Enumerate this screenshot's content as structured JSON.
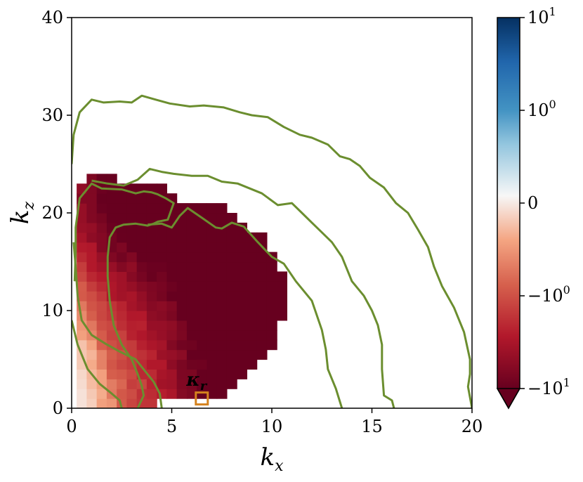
{
  "chart_data": {
    "type": "heatmap",
    "xlabel": "k_x",
    "ylabel": "k_z",
    "xlim": [
      0,
      20
    ],
    "ylim": [
      0,
      40
    ],
    "xticks": [
      0,
      5,
      10,
      15,
      20
    ],
    "yticks": [
      0,
      10,
      20,
      30,
      40
    ],
    "xtick_labels": [
      "0",
      "5",
      "10",
      "15",
      "20"
    ],
    "ytick_labels": [
      "0",
      "10",
      "20",
      "30",
      "40"
    ],
    "colorscale": "RdBu (symmetric log)",
    "colorbar": {
      "range": [
        -10,
        10
      ],
      "ticks": [
        {
          "value": 10,
          "label": "10^1"
        },
        {
          "value": 1,
          "label": "10^0"
        },
        {
          "value": 0,
          "label": "0"
        },
        {
          "value": -1,
          "label": "-10^0"
        },
        {
          "value": -10,
          "label": "-10^1"
        }
      ],
      "extend": "min"
    },
    "heatmap_cell": {
      "dx": 0.5,
      "dz": 1.0
    },
    "heatmap_region": {
      "rows": [
        {
          "z": 0.5,
          "x_from": 0.25,
          "x_to": 4.25
        },
        {
          "z": 1.5,
          "x_from": 0.25,
          "x_to": 7.75
        },
        {
          "z": 2.5,
          "x_from": 0.25,
          "x_to": 8.25
        },
        {
          "z": 3.5,
          "x_from": 0.25,
          "x_to": 8.75
        },
        {
          "z": 4.5,
          "x_from": 0.25,
          "x_to": 9.25
        },
        {
          "z": 5.5,
          "x_from": 0.25,
          "x_to": 9.75
        },
        {
          "z": 6.5,
          "x_from": 0.25,
          "x_to": 10.25
        },
        {
          "z": 7.5,
          "x_from": 0.25,
          "x_to": 10.25
        },
        {
          "z": 8.5,
          "x_from": 0.25,
          "x_to": 10.25
        },
        {
          "z": 9.5,
          "x_from": 0.25,
          "x_to": 10.75
        },
        {
          "z": 10.5,
          "x_from": 0.25,
          "x_to": 10.75
        },
        {
          "z": 11.5,
          "x_from": 0.25,
          "x_to": 10.75
        },
        {
          "z": 12.5,
          "x_from": 0.25,
          "x_to": 10.75
        },
        {
          "z": 13.5,
          "x_from": 0.25,
          "x_to": 10.75
        },
        {
          "z": 14.5,
          "x_from": 0.25,
          "x_to": 10.25
        },
        {
          "z": 15.5,
          "x_from": 0.25,
          "x_to": 10.25
        },
        {
          "z": 16.5,
          "x_from": 0.25,
          "x_to": 9.75
        },
        {
          "z": 17.5,
          "x_from": 0.25,
          "x_to": 9.75
        },
        {
          "z": 18.5,
          "x_from": 0.25,
          "x_to": 8.75
        },
        {
          "z": 19.5,
          "x_from": 0.25,
          "x_to": 8.25
        },
        {
          "z": 20.5,
          "x_from": 0.25,
          "x_to": 7.75
        },
        {
          "z": 21.5,
          "x_from": 0.25,
          "x_to": 5.25
        },
        {
          "z": 22.5,
          "x_from": 0.25,
          "x_to": 4.75
        },
        {
          "z": 23.5,
          "x_from": 0.75,
          "x_to": 2.25
        }
      ],
      "value_trend": "near 0 at small k_x, decreasing toward -10 at large k_x"
    },
    "contours": [
      {
        "color": "#6b8e2f",
        "points": [
          [
            0,
            9
          ],
          [
            0.3,
            6.5
          ],
          [
            0.8,
            4
          ],
          [
            1.4,
            2.5
          ],
          [
            2,
            1.5
          ],
          [
            2.4,
            0.8
          ],
          [
            2.5,
            0
          ]
        ]
      },
      {
        "color": "#6b8e2f",
        "points": [
          [
            0.15,
            13
          ],
          [
            0.2,
            16
          ],
          [
            0.2,
            18.5
          ],
          [
            0.4,
            21.5
          ],
          [
            1,
            23
          ],
          [
            1.5,
            22.5
          ],
          [
            2.5,
            22.4
          ],
          [
            3.2,
            22
          ],
          [
            3.6,
            22.2
          ],
          [
            4,
            22.1
          ],
          [
            4.3,
            21.9
          ],
          [
            4.7,
            21.5
          ],
          [
            5.1,
            21
          ],
          [
            4.8,
            19.3
          ],
          [
            4.3,
            19.1
          ],
          [
            4.1,
            18.9
          ],
          [
            3.8,
            18.7
          ],
          [
            3.2,
            18.9
          ],
          [
            2.6,
            18.8
          ],
          [
            2.2,
            18.5
          ],
          [
            1.9,
            17.5
          ],
          [
            1.8,
            15.5
          ],
          [
            1.8,
            13.5
          ],
          [
            1.9,
            11
          ],
          [
            2.1,
            8.5
          ],
          [
            2.5,
            6.5
          ],
          [
            3,
            5
          ],
          [
            3.3,
            3.5
          ],
          [
            3.5,
            2.3
          ],
          [
            3.6,
            1.3
          ],
          [
            3.3,
            0
          ]
        ]
      },
      {
        "color": "#6b8e2f",
        "points": [
          [
            0.1,
            17
          ],
          [
            0.2,
            14.5
          ],
          [
            0.3,
            11.5
          ],
          [
            0.5,
            9
          ],
          [
            1,
            7.5
          ],
          [
            1.7,
            6.6
          ],
          [
            2.4,
            5.8
          ],
          [
            3.2,
            5
          ],
          [
            4.1,
            2.7
          ],
          [
            4.4,
            1.5
          ],
          [
            4.5,
            0
          ]
        ]
      },
      {
        "color": "#6b8e2f",
        "points": [
          [
            3.8,
            18.8
          ],
          [
            4.5,
            18.9
          ],
          [
            5,
            18.5
          ],
          [
            5.4,
            19.7
          ],
          [
            5.8,
            20.5
          ],
          [
            6.5,
            19.5
          ],
          [
            7.2,
            18.5
          ],
          [
            7.5,
            18.4
          ],
          [
            8,
            19
          ],
          [
            8.6,
            18.6
          ],
          [
            9.3,
            17
          ],
          [
            10,
            15.5
          ],
          [
            10.6,
            14.8
          ],
          [
            11.2,
            13
          ],
          [
            12,
            11
          ],
          [
            12.5,
            8
          ],
          [
            12.7,
            6
          ],
          [
            12.8,
            4
          ],
          [
            13.2,
            2
          ],
          [
            13.5,
            0
          ]
        ]
      },
      {
        "color": "#6b8e2f",
        "points": [
          [
            1,
            23.3
          ],
          [
            1.8,
            23
          ],
          [
            2.6,
            22.8
          ],
          [
            3.3,
            23.4
          ],
          [
            3.9,
            24.5
          ],
          [
            4.5,
            24.2
          ],
          [
            5.1,
            24
          ],
          [
            6,
            23.8
          ],
          [
            6.8,
            23.8
          ],
          [
            7.5,
            23.2
          ],
          [
            8.3,
            23
          ],
          [
            9.5,
            22
          ],
          [
            10.3,
            20.8
          ],
          [
            11,
            21
          ],
          [
            11.5,
            20
          ],
          [
            12,
            19
          ],
          [
            12.5,
            18
          ],
          [
            13,
            17
          ],
          [
            13.5,
            15.5
          ],
          [
            14,
            13
          ],
          [
            14.6,
            11.5
          ],
          [
            15,
            10
          ],
          [
            15.3,
            8.5
          ],
          [
            15.5,
            6.5
          ],
          [
            15.5,
            4
          ],
          [
            15.6,
            1.3
          ],
          [
            16,
            0.8
          ],
          [
            16.1,
            0
          ]
        ]
      },
      {
        "color": "#6b8e2f",
        "points": [
          [
            0,
            25
          ],
          [
            0.1,
            28
          ],
          [
            0.4,
            30.3
          ],
          [
            1,
            31.6
          ],
          [
            1.6,
            31.3
          ],
          [
            2.4,
            31.4
          ],
          [
            3,
            31.3
          ],
          [
            3.5,
            32
          ],
          [
            4.2,
            31.6
          ],
          [
            4.9,
            31.2
          ],
          [
            5.9,
            30.9
          ],
          [
            6.6,
            31
          ],
          [
            7.6,
            30.8
          ],
          [
            8.4,
            30.3
          ],
          [
            9,
            30
          ],
          [
            9.8,
            29.8
          ],
          [
            10.6,
            28.8
          ],
          [
            11.4,
            28
          ],
          [
            12,
            27.7
          ],
          [
            12.8,
            27
          ],
          [
            13.4,
            25.8
          ],
          [
            13.9,
            25.5
          ],
          [
            14.4,
            24.8
          ],
          [
            14.9,
            23.6
          ],
          [
            15.6,
            22.6
          ],
          [
            16.2,
            21
          ],
          [
            16.8,
            20
          ],
          [
            17.3,
            18.3
          ],
          [
            17.8,
            16.5
          ],
          [
            18.1,
            14.5
          ],
          [
            18.5,
            12.5
          ],
          [
            19.1,
            10.3
          ],
          [
            19.6,
            7.8
          ],
          [
            19.9,
            5
          ],
          [
            19.9,
            3.5
          ],
          [
            19.8,
            2.2
          ],
          [
            20,
            0
          ]
        ]
      }
    ],
    "annotations": [
      {
        "text": "κ_r",
        "x": 6.5,
        "z": 1.0,
        "color": "#d4821e",
        "marker": "square"
      }
    ]
  }
}
